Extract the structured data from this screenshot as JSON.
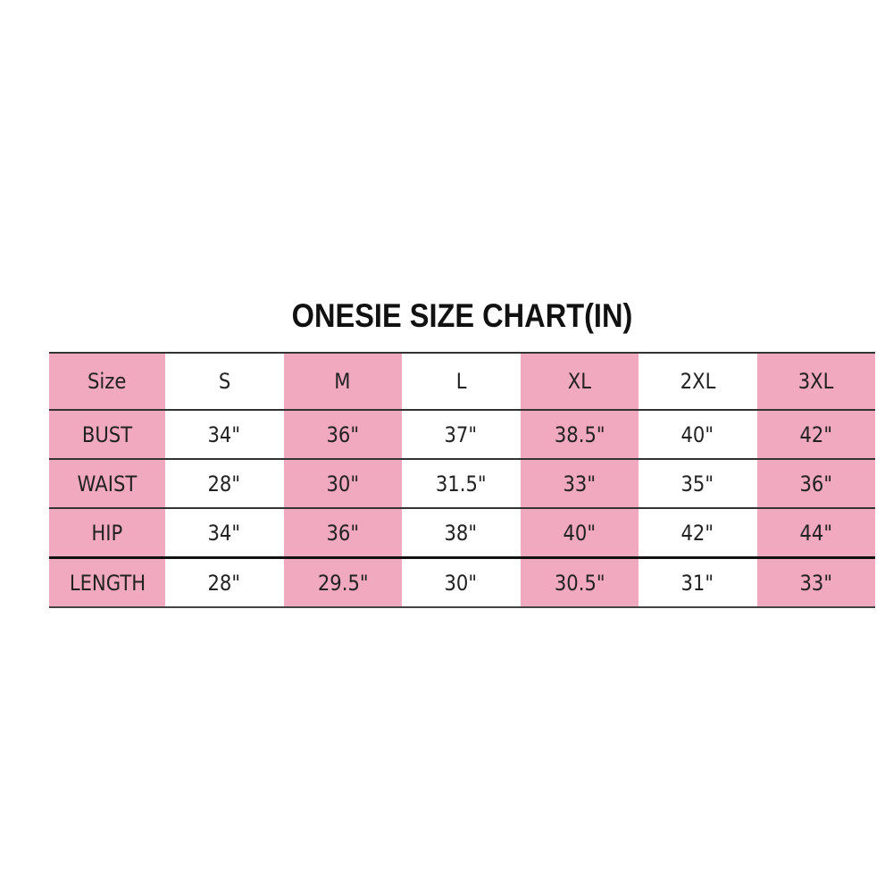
{
  "title": "ONESIE SIZE CHART(IN)",
  "colors": {
    "highlight": "#f0a9bf",
    "background": "#ffffff",
    "lines": "#333333"
  },
  "table": {
    "headers": [
      "Size",
      "S",
      "M",
      "L",
      "XL",
      "2XL",
      "3XL"
    ],
    "rows": [
      [
        "BUST",
        "34\"",
        "36\"",
        "37\"",
        "38.5\"",
        "40\"",
        "42\""
      ],
      [
        "WAIST",
        "28\"",
        "30\"",
        "31.5\"",
        "33\"",
        "35\"",
        "36\""
      ],
      [
        "HIP",
        "34\"",
        "36\"",
        "38\"",
        "40\"",
        "42\"",
        "44\""
      ],
      [
        "LENGTH",
        "28\"",
        "29.5\"",
        "30\"",
        "30.5\"",
        "31\"",
        "33\""
      ]
    ]
  }
}
